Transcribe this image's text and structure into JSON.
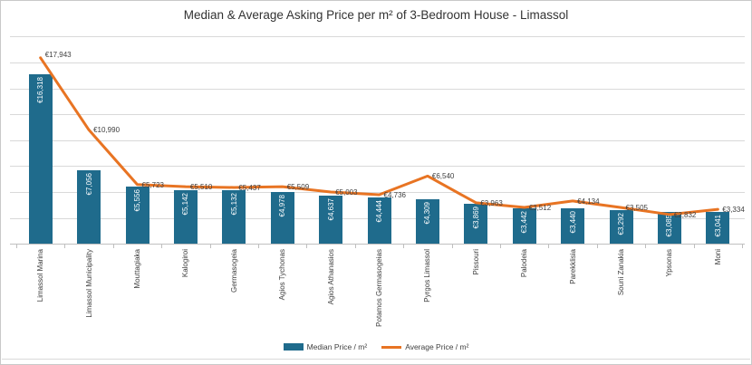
{
  "title": "Median & Average Asking Price per m² of 3-Bedroom House - Limassol",
  "legend": [
    {
      "label": "Median Price / m²",
      "marker": "bar-swatch"
    },
    {
      "label": "Average Price / m²",
      "marker": "line-swatch"
    }
  ],
  "colors": {
    "bar": "#1f6b8c",
    "line": "#e87423",
    "grid": "#d9d9d9",
    "axis": "#bfbfbf",
    "label_text": "#404040",
    "bar_label_text": "#ffffff"
  },
  "chart_data": {
    "type": "bar",
    "subtype": "combo bar+line",
    "title": "Median & Average Asking Price per m² of 3-Bedroom House - Limassol",
    "xlabel": "",
    "ylabel": "",
    "ylim": [
      0,
      20000
    ],
    "grid_step": 2500,
    "grid": true,
    "legend_position": "bottom",
    "currency_prefix": "€",
    "categories": [
      "Limassol Marina",
      "Limassol Municipality",
      "Mouttagiaka",
      "Kalogiroi",
      "Germasogeia",
      "Agios Tychonas",
      "Agios Athanasios",
      "Potamos Germasogeias",
      "Pyrgos Limassol",
      "Pissouri",
      "Palodeia",
      "Parekklisia",
      "Souni Zanakia",
      "Ypsonas",
      "Moni"
    ],
    "series": [
      {
        "name": "Median Price / m²",
        "type": "bar",
        "color": "#1f6b8c",
        "values": [
          16318,
          7056,
          5556,
          5142,
          5132,
          4978,
          4637,
          4444,
          4309,
          3869,
          3442,
          3440,
          3292,
          3085,
          3041
        ],
        "labels": [
          "€16,318",
          "€7,056",
          "€5,556",
          "€5,142",
          "€5,132",
          "€4,978",
          "€4,637",
          "€4,444",
          "€4,309",
          "€3,869",
          "€3,442",
          "€3,440",
          "€3,292",
          "€3,085",
          "€3,041"
        ]
      },
      {
        "name": "Average Price / m²",
        "type": "line",
        "color": "#e87423",
        "values": [
          17943,
          10990,
          5723,
          5510,
          5437,
          5509,
          5003,
          4736,
          6540,
          3963,
          3512,
          4134,
          3505,
          2832,
          3334
        ],
        "labels": [
          "€17,943",
          "€10,990",
          "€5,723",
          "€5,510",
          "€5,437",
          "€5,509",
          "€5,003",
          "€4,736",
          "€6,540",
          "€3,963",
          "€3,512",
          "€4,134",
          "€3,505",
          "€2,832",
          "€3,334"
        ]
      }
    ]
  }
}
